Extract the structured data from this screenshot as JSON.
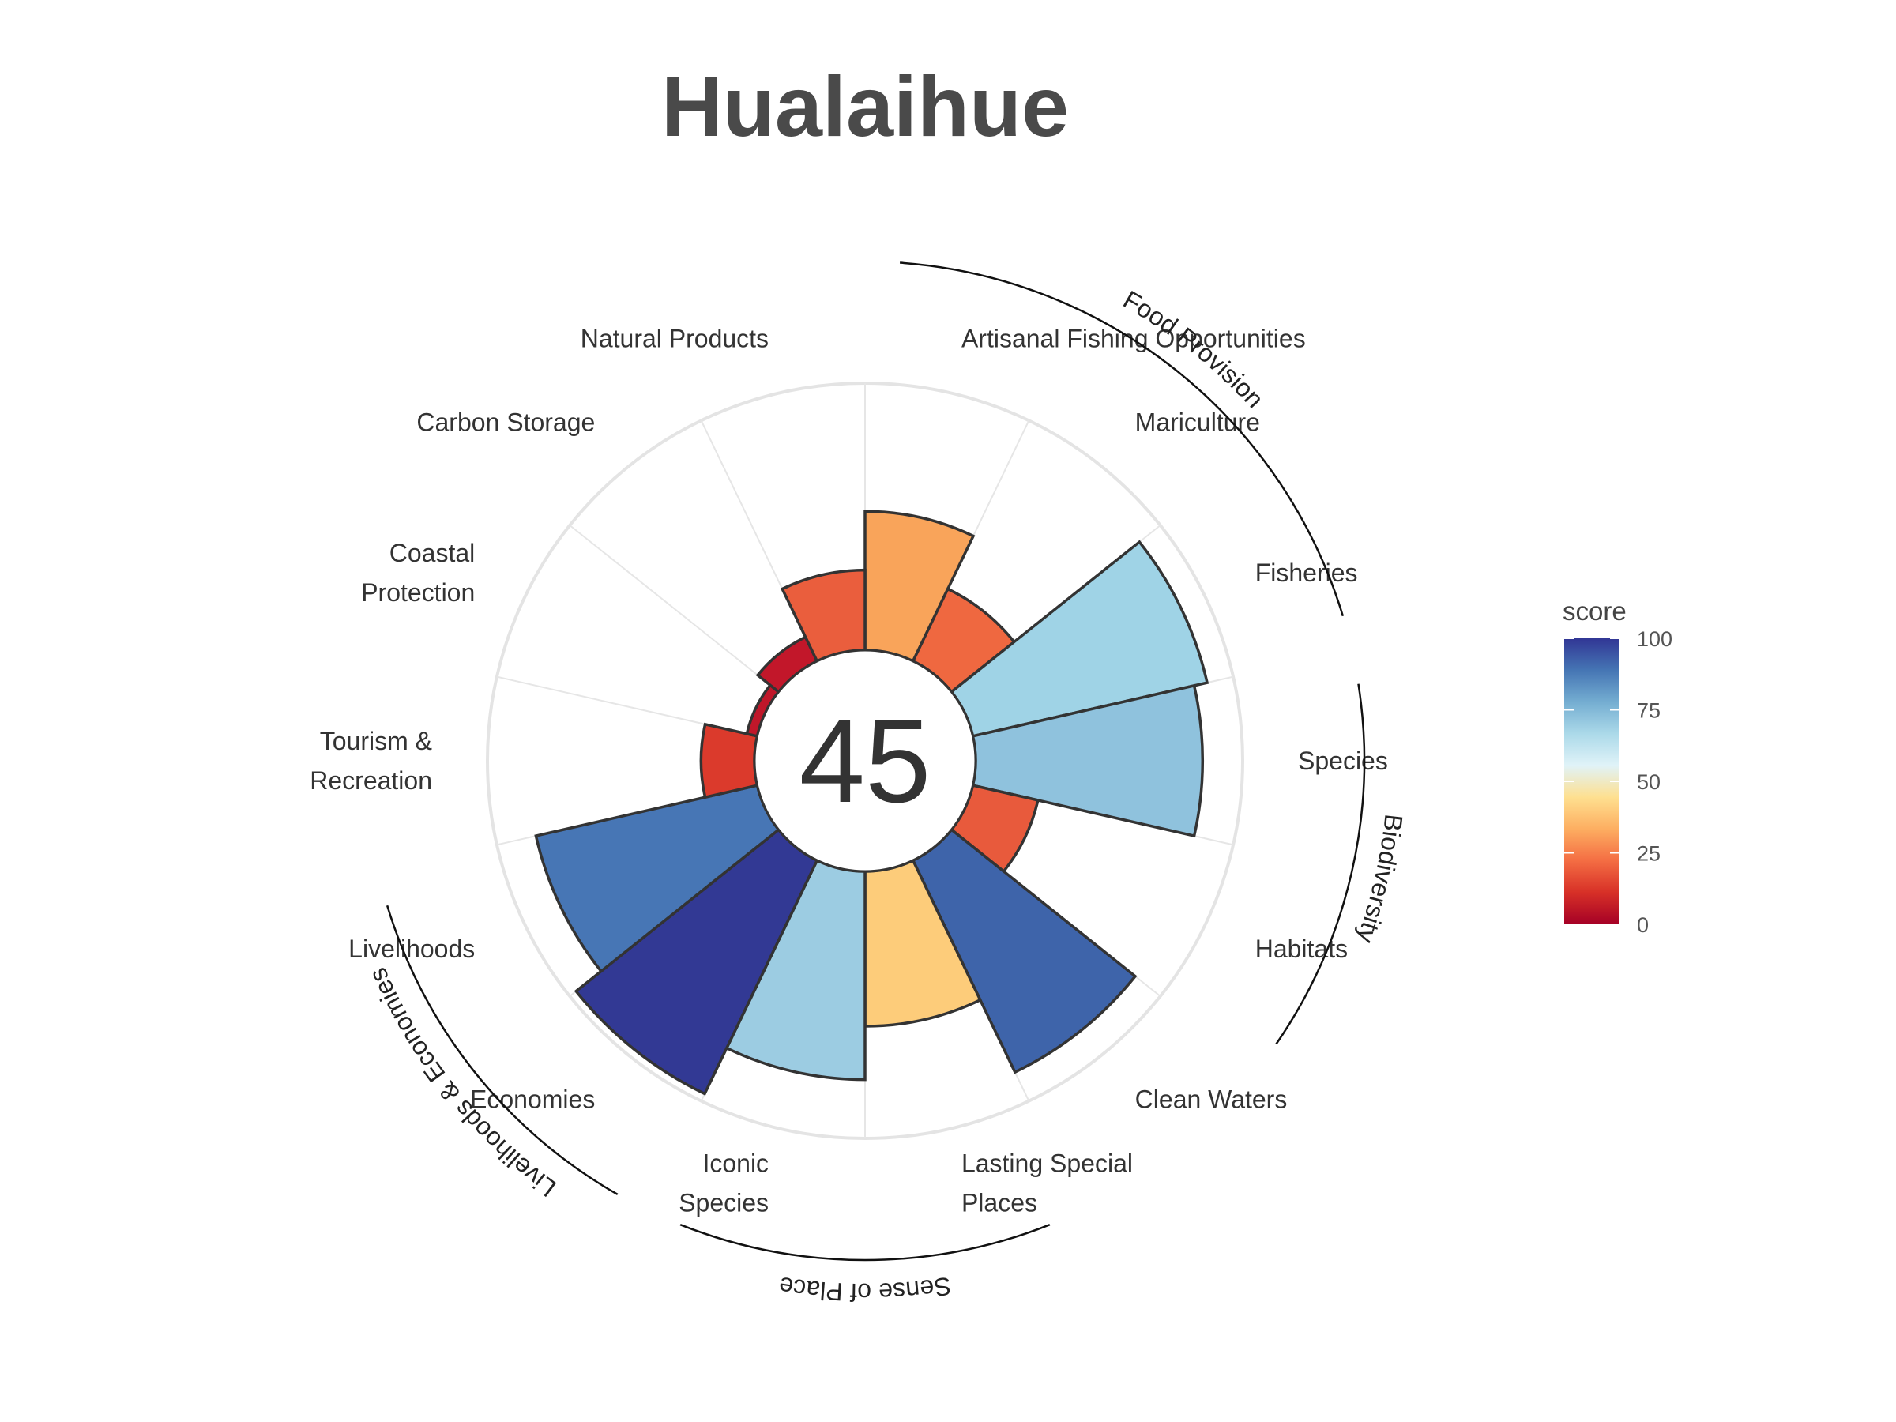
{
  "chart_data": {
    "type": "polar-bar",
    "title": "Hualaihue",
    "overall_score": "45",
    "ylim": [
      0,
      100
    ],
    "goals": [
      {
        "name": "Artisanal Fishing Opportunities",
        "label_lines": [
          "Artisanal Fishing Opportunities"
        ],
        "value": 52,
        "color": "#f9a45a"
      },
      {
        "name": "Mariculture",
        "label_lines": [
          "Mariculture"
        ],
        "value": 30,
        "color": "#ef6840"
      },
      {
        "name": "Fisheries",
        "label_lines": [
          "Fisheries"
        ],
        "value": 90,
        "color": "#9fd3e6"
      },
      {
        "name": "Species",
        "label_lines": [
          "Species"
        ],
        "value": 85,
        "color": "#8fc2dd"
      },
      {
        "name": "Habitats",
        "label_lines": [
          "Habitats"
        ],
        "value": 25,
        "color": "#e85a3c"
      },
      {
        "name": "Clean Waters",
        "label_lines": [
          "Clean Waters"
        ],
        "value": 88,
        "color": "#3e64aa"
      },
      {
        "name": "Lasting Special Places",
        "label_lines": [
          "Lasting Special",
          "Places"
        ],
        "value": 58,
        "color": "#fdcc7a"
      },
      {
        "name": "Iconic Species",
        "label_lines": [
          "Iconic",
          "Species"
        ],
        "value": 78,
        "color": "#9ccce2"
      },
      {
        "name": "Economies",
        "label_lines": [
          "Economies"
        ],
        "value": 97,
        "color": "#323994"
      },
      {
        "name": "Livelihoods",
        "label_lines": [
          "Livelihoods"
        ],
        "value": 85,
        "color": "#4776b5"
      },
      {
        "name": "Tourism & Recreation",
        "label_lines": [
          "Tourism &",
          "Recreation"
        ],
        "value": 20,
        "color": "#db3a2c"
      },
      {
        "name": "Coastal Protection",
        "label_lines": [
          "Coastal",
          "Protection"
        ],
        "value": 4,
        "color": "#c0172a"
      },
      {
        "name": "Carbon Storage",
        "label_lines": [
          "Carbon Storage"
        ],
        "value": 10,
        "color": "#c2172a"
      },
      {
        "name": "Natural Products",
        "label_lines": [
          "Natural Products"
        ],
        "value": 30,
        "color": "#ea5e3d"
      }
    ],
    "groups": [
      {
        "name": "Food Provision",
        "members": [
          "Artisanal Fishing Opportunities",
          "Mariculture",
          "Fisheries"
        ]
      },
      {
        "name": "Biodiversity",
        "members": [
          "Species",
          "Habitats"
        ]
      },
      {
        "name": "Sense of Place",
        "members": [
          "Lasting Special Places",
          "Iconic Species"
        ]
      },
      {
        "name": "Livelihoods & Economies",
        "members": [
          "Economies",
          "Livelihoods"
        ]
      }
    ],
    "legend": {
      "title": "score",
      "ticks": [
        "100",
        "75",
        "50",
        "25",
        "0"
      ],
      "tick_values": [
        100,
        75,
        50,
        25,
        0
      ],
      "colors": [
        "#a50026",
        "#d73027",
        "#f46d43",
        "#fdae61",
        "#fee090",
        "#e0f3f8",
        "#abd9e9",
        "#74add1",
        "#4575b4",
        "#313695"
      ]
    }
  }
}
